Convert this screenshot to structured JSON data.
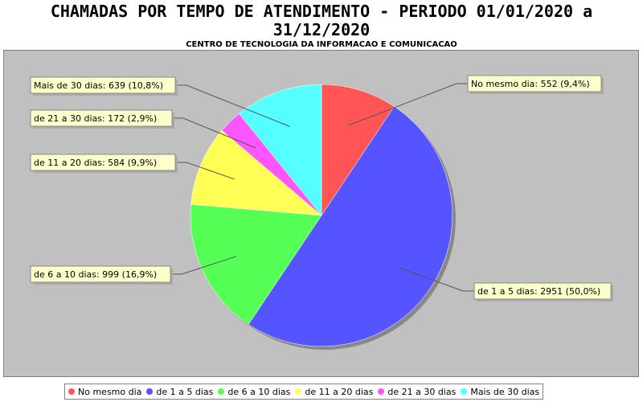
{
  "title_line1": "CHAMADAS POR TEMPO DE ATENDIMENTO - PERIODO 01/01/2020 a",
  "title_line2": "31/12/2020",
  "subtitle": "CENTRO DE TECNOLOGIA DA INFORMACAO E COMUNICACAO",
  "colors": {
    "plot_background": "#c0c0c0",
    "label_box_fill": "#ffffcc"
  },
  "chart_data": {
    "type": "pie",
    "start_angle_deg": 90,
    "direction": "clockwise",
    "slices": [
      {
        "name": "No mesmo dia",
        "value": 552,
        "percent": "9,4%",
        "color": "#ff5555",
        "label": "No mesmo dia: 552 (9,4%)"
      },
      {
        "name": "de 1 a 5 dias",
        "value": 2951,
        "percent": "50,0%",
        "color": "#5555ff",
        "label": "de 1 a 5 dias: 2951 (50,0%)"
      },
      {
        "name": "de 6 a 10 dias",
        "value": 999,
        "percent": "16,9%",
        "color": "#55ff55",
        "label": "de 6 a 10 dias: 999 (16,9%)"
      },
      {
        "name": "de 11 a 20 dias",
        "value": 584,
        "percent": "9,9%",
        "color": "#ffff55",
        "label": "de 11 a 20 dias: 584 (9,9%)"
      },
      {
        "name": "de 21 a 30 dias",
        "value": 172,
        "percent": "2,9%",
        "color": "#ff55ff",
        "label": "de 21 a 30 dias: 172 (2,9%)"
      },
      {
        "name": "Mais de 30 dias",
        "value": 639,
        "percent": "10,8%",
        "color": "#55ffff",
        "label": "Mais de 30 dias: 639 (10,8%)"
      }
    ],
    "legend_position": "bottom"
  }
}
